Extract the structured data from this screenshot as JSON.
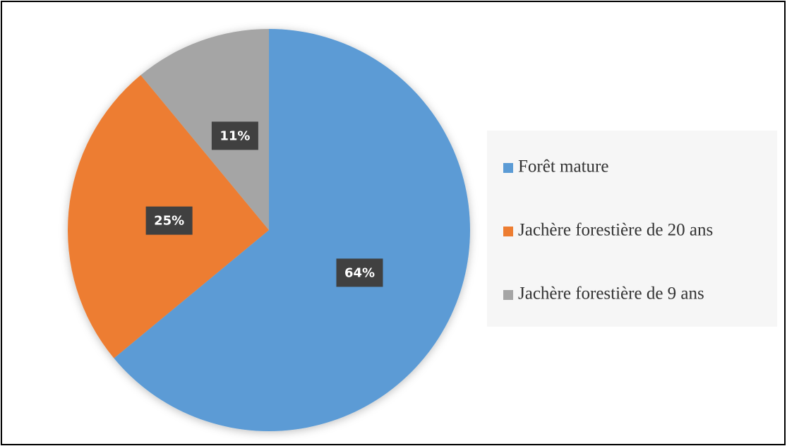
{
  "chart_data": {
    "type": "pie",
    "categories": [
      "Forêt mature",
      "Jachère forestière de 20 ans",
      "Jachère forestière de 9 ans"
    ],
    "values": [
      64,
      25,
      11
    ],
    "value_labels": [
      "64%",
      "25%",
      "11%"
    ],
    "colors": [
      "#5b9bd5",
      "#ed7d31",
      "#a5a5a5"
    ],
    "legend": "right"
  }
}
